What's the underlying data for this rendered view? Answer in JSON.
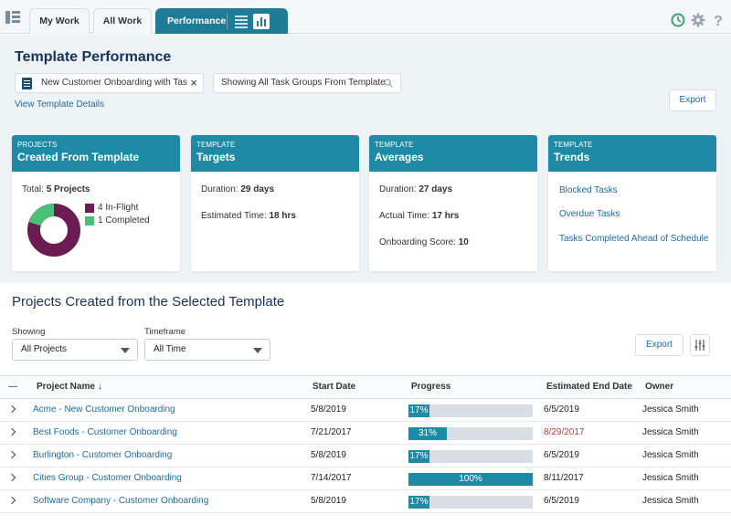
{
  "tabs": {
    "my_work": "My Work",
    "all_work": "All Work",
    "performance": "Performance"
  },
  "header": {
    "title": "Template Performance",
    "template_value": "New Customer Onboarding with Tas",
    "filter_text": "Showing All Task Groups From Template",
    "details_link": "View Template Details",
    "export_label": "Export"
  },
  "cards": {
    "projects": {
      "caption": "PROJECTS",
      "title": "Created From Template",
      "total_label": "Total:",
      "total_value": "5 Projects",
      "legend": [
        {
          "label": "4 In-Flight",
          "color": "#6b1d52"
        },
        {
          "label": "1 Completed",
          "color": "#4bc076"
        }
      ]
    },
    "targets": {
      "caption": "TEMPLATE",
      "title": "Targets",
      "duration_label": "Duration:",
      "duration_value": "29 days",
      "est_label": "Estimated Time:",
      "est_value": "18 hrs"
    },
    "averages": {
      "caption": "TEMPLATE",
      "title": "Averages",
      "duration_label": "Duration:",
      "duration_value": "27 days",
      "actual_label": "Actual Time:",
      "actual_value": "17 hrs",
      "score_label": "Onboarding Score:",
      "score_value": "10"
    },
    "trends": {
      "caption": "TEMPLATE",
      "title": "Trends",
      "links": [
        "Blocked Tasks",
        "Overdue Tasks",
        "Tasks Completed Ahead of Schedule"
      ]
    }
  },
  "section": {
    "title": "Projects Created from the Selected Template",
    "showing_label": "Showing",
    "showing_value": "All Projects",
    "timeframe_label": "Timeframe",
    "timeframe_value": "All Time",
    "export_label": "Export"
  },
  "table": {
    "collapse_symbol": "—",
    "headers": {
      "name": "Project Name ↓",
      "start": "Start Date",
      "progress": "Progress",
      "end": "Estimated End Date",
      "owner": "Owner"
    },
    "rows": [
      {
        "name": "Acme - New Customer Onboarding",
        "start": "5/8/2019",
        "progress": 17,
        "progress_label": "17%",
        "end": "6/5/2019",
        "end_overdue": false,
        "owner": "Jessica Smith"
      },
      {
        "name": "Best Foods - Customer Onboarding",
        "start": "7/21/2017",
        "progress": 31,
        "progress_label": "31%",
        "end": "8/29/2017",
        "end_overdue": true,
        "owner": "Jessica Smith"
      },
      {
        "name": "Burlington - Customer Onboarding",
        "start": "5/8/2019",
        "progress": 17,
        "progress_label": "17%",
        "end": "6/5/2019",
        "end_overdue": false,
        "owner": "Jessica Smith"
      },
      {
        "name": "Cities Group - Customer Onboarding",
        "start": "7/14/2017",
        "progress": 100,
        "progress_label": "100%",
        "end": "8/11/2017",
        "end_overdue": false,
        "owner": "Jessica Smith"
      },
      {
        "name": "Software Company - Customer Onboarding",
        "start": "5/8/2019",
        "progress": 17,
        "progress_label": "17%",
        "end": "6/5/2019",
        "end_overdue": false,
        "owner": "Jessica Smith"
      }
    ]
  },
  "colors": {
    "accent": "#1e8aa5",
    "link": "#1d6aa5",
    "overdue": "#c23934",
    "status_ok": "#3aa36a"
  },
  "icons": [
    "app-launcher-icon",
    "list-view-icon",
    "bar-chart-icon",
    "clock-icon",
    "gear-icon",
    "help-icon",
    "template-doc-icon",
    "search-icon",
    "settings-sliders-icon"
  ]
}
